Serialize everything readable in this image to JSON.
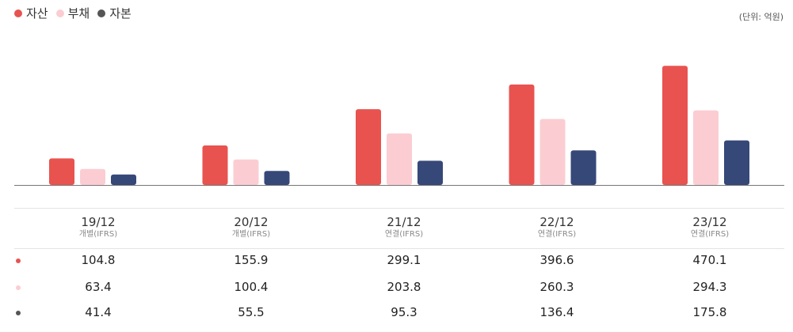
{
  "legend": {
    "assets": {
      "label": "자산",
      "color": "#E8534F"
    },
    "liabilities": {
      "label": "부채",
      "color": "#FBCDD2"
    },
    "equity": {
      "label": "자본",
      "color": "#364878"
    }
  },
  "unit_label": "(단위: 억원)",
  "chart_data": {
    "type": "bar",
    "categories": [
      "19/12",
      "20/12",
      "21/12",
      "22/12",
      "23/12"
    ],
    "bases": [
      "개별(IFRS)",
      "개별(IFRS)",
      "연결(IFRS)",
      "연결(IFRS)",
      "연결(IFRS)"
    ],
    "series": [
      {
        "name": "자산",
        "color": "#E8534F",
        "values": [
          104.8,
          155.9,
          299.1,
          396.6,
          470.1
        ]
      },
      {
        "name": "부채",
        "color": "#FBCDD2",
        "values": [
          63.4,
          100.4,
          203.8,
          260.3,
          294.3
        ]
      },
      {
        "name": "자본",
        "color": "#364878",
        "values": [
          41.4,
          55.5,
          95.3,
          136.4,
          175.8
        ]
      }
    ],
    "ylim": [
      0,
      500
    ],
    "title": "",
    "xlabel": "",
    "ylabel": ""
  },
  "table": {
    "periods": [
      "19/12",
      "20/12",
      "21/12",
      "22/12",
      "23/12"
    ],
    "bases": [
      "개별(IFRS)",
      "개별(IFRS)",
      "연결(IFRS)",
      "연결(IFRS)",
      "연결(IFRS)"
    ],
    "rows": [
      {
        "color": "#E8534F",
        "values": [
          "104.8",
          "155.9",
          "299.1",
          "396.6",
          "470.1"
        ]
      },
      {
        "color": "#FBCDD2",
        "values": [
          "63.4",
          "100.4",
          "203.8",
          "260.3",
          "294.3"
        ]
      },
      {
        "color": "#364878",
        "values": [
          "41.4",
          "55.5",
          "95.3",
          "136.4",
          "175.8"
        ]
      }
    ]
  }
}
